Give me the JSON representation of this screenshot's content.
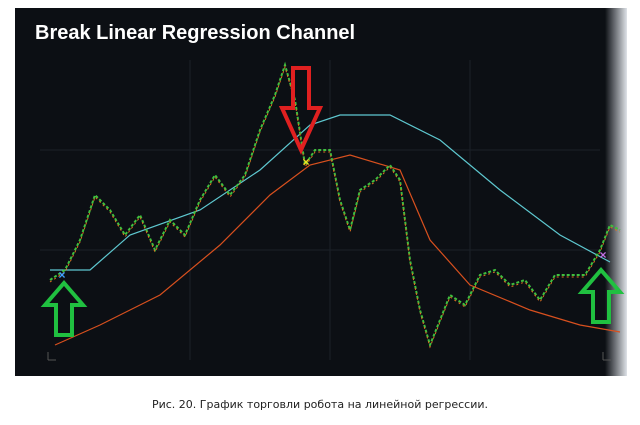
{
  "figure": {
    "title": "Break Linear Regression Channel"
  },
  "caption": "Рис. 20. График торговли робота на линейной регрессии."
}
